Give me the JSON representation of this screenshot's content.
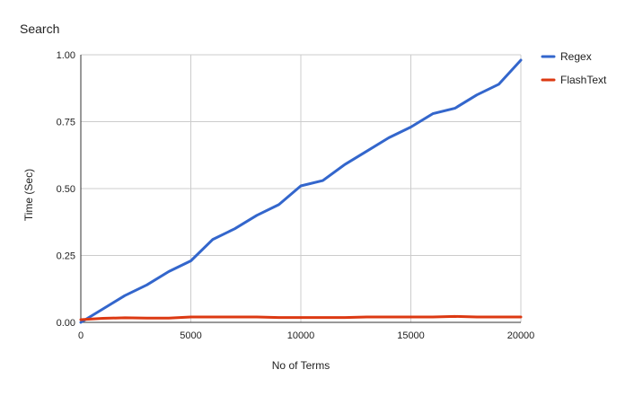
{
  "chart_data": {
    "type": "line",
    "title": "Search",
    "xlabel": "No of Terms",
    "ylabel": "Time (Sec)",
    "xlim": [
      0,
      20000
    ],
    "ylim": [
      0,
      1
    ],
    "x_ticks": [
      "0",
      "5000",
      "10000",
      "15000",
      "20000"
    ],
    "y_ticks": [
      "0.00",
      "0.25",
      "0.50",
      "0.75",
      "1.00"
    ],
    "grid": true,
    "legend_position": "right",
    "series": [
      {
        "name": "Regex",
        "color": "#3366cc",
        "x": [
          0,
          1000,
          2000,
          3000,
          4000,
          5000,
          6000,
          7000,
          8000,
          9000,
          10000,
          11000,
          12000,
          13000,
          14000,
          15000,
          16000,
          17000,
          18000,
          19000,
          20000
        ],
        "y": [
          0.0,
          0.05,
          0.1,
          0.14,
          0.19,
          0.23,
          0.31,
          0.35,
          0.4,
          0.44,
          0.51,
          0.53,
          0.59,
          0.64,
          0.69,
          0.73,
          0.78,
          0.8,
          0.85,
          0.89,
          0.98
        ]
      },
      {
        "name": "FlashText",
        "color": "#dc3912",
        "x": [
          0,
          1000,
          2000,
          3000,
          4000,
          5000,
          6000,
          7000,
          8000,
          9000,
          10000,
          11000,
          12000,
          13000,
          14000,
          15000,
          16000,
          17000,
          18000,
          19000,
          20000
        ],
        "y": [
          0.01,
          0.015,
          0.017,
          0.016,
          0.016,
          0.02,
          0.02,
          0.02,
          0.02,
          0.018,
          0.018,
          0.018,
          0.018,
          0.02,
          0.02,
          0.02,
          0.02,
          0.022,
          0.02,
          0.02,
          0.02
        ]
      }
    ]
  }
}
